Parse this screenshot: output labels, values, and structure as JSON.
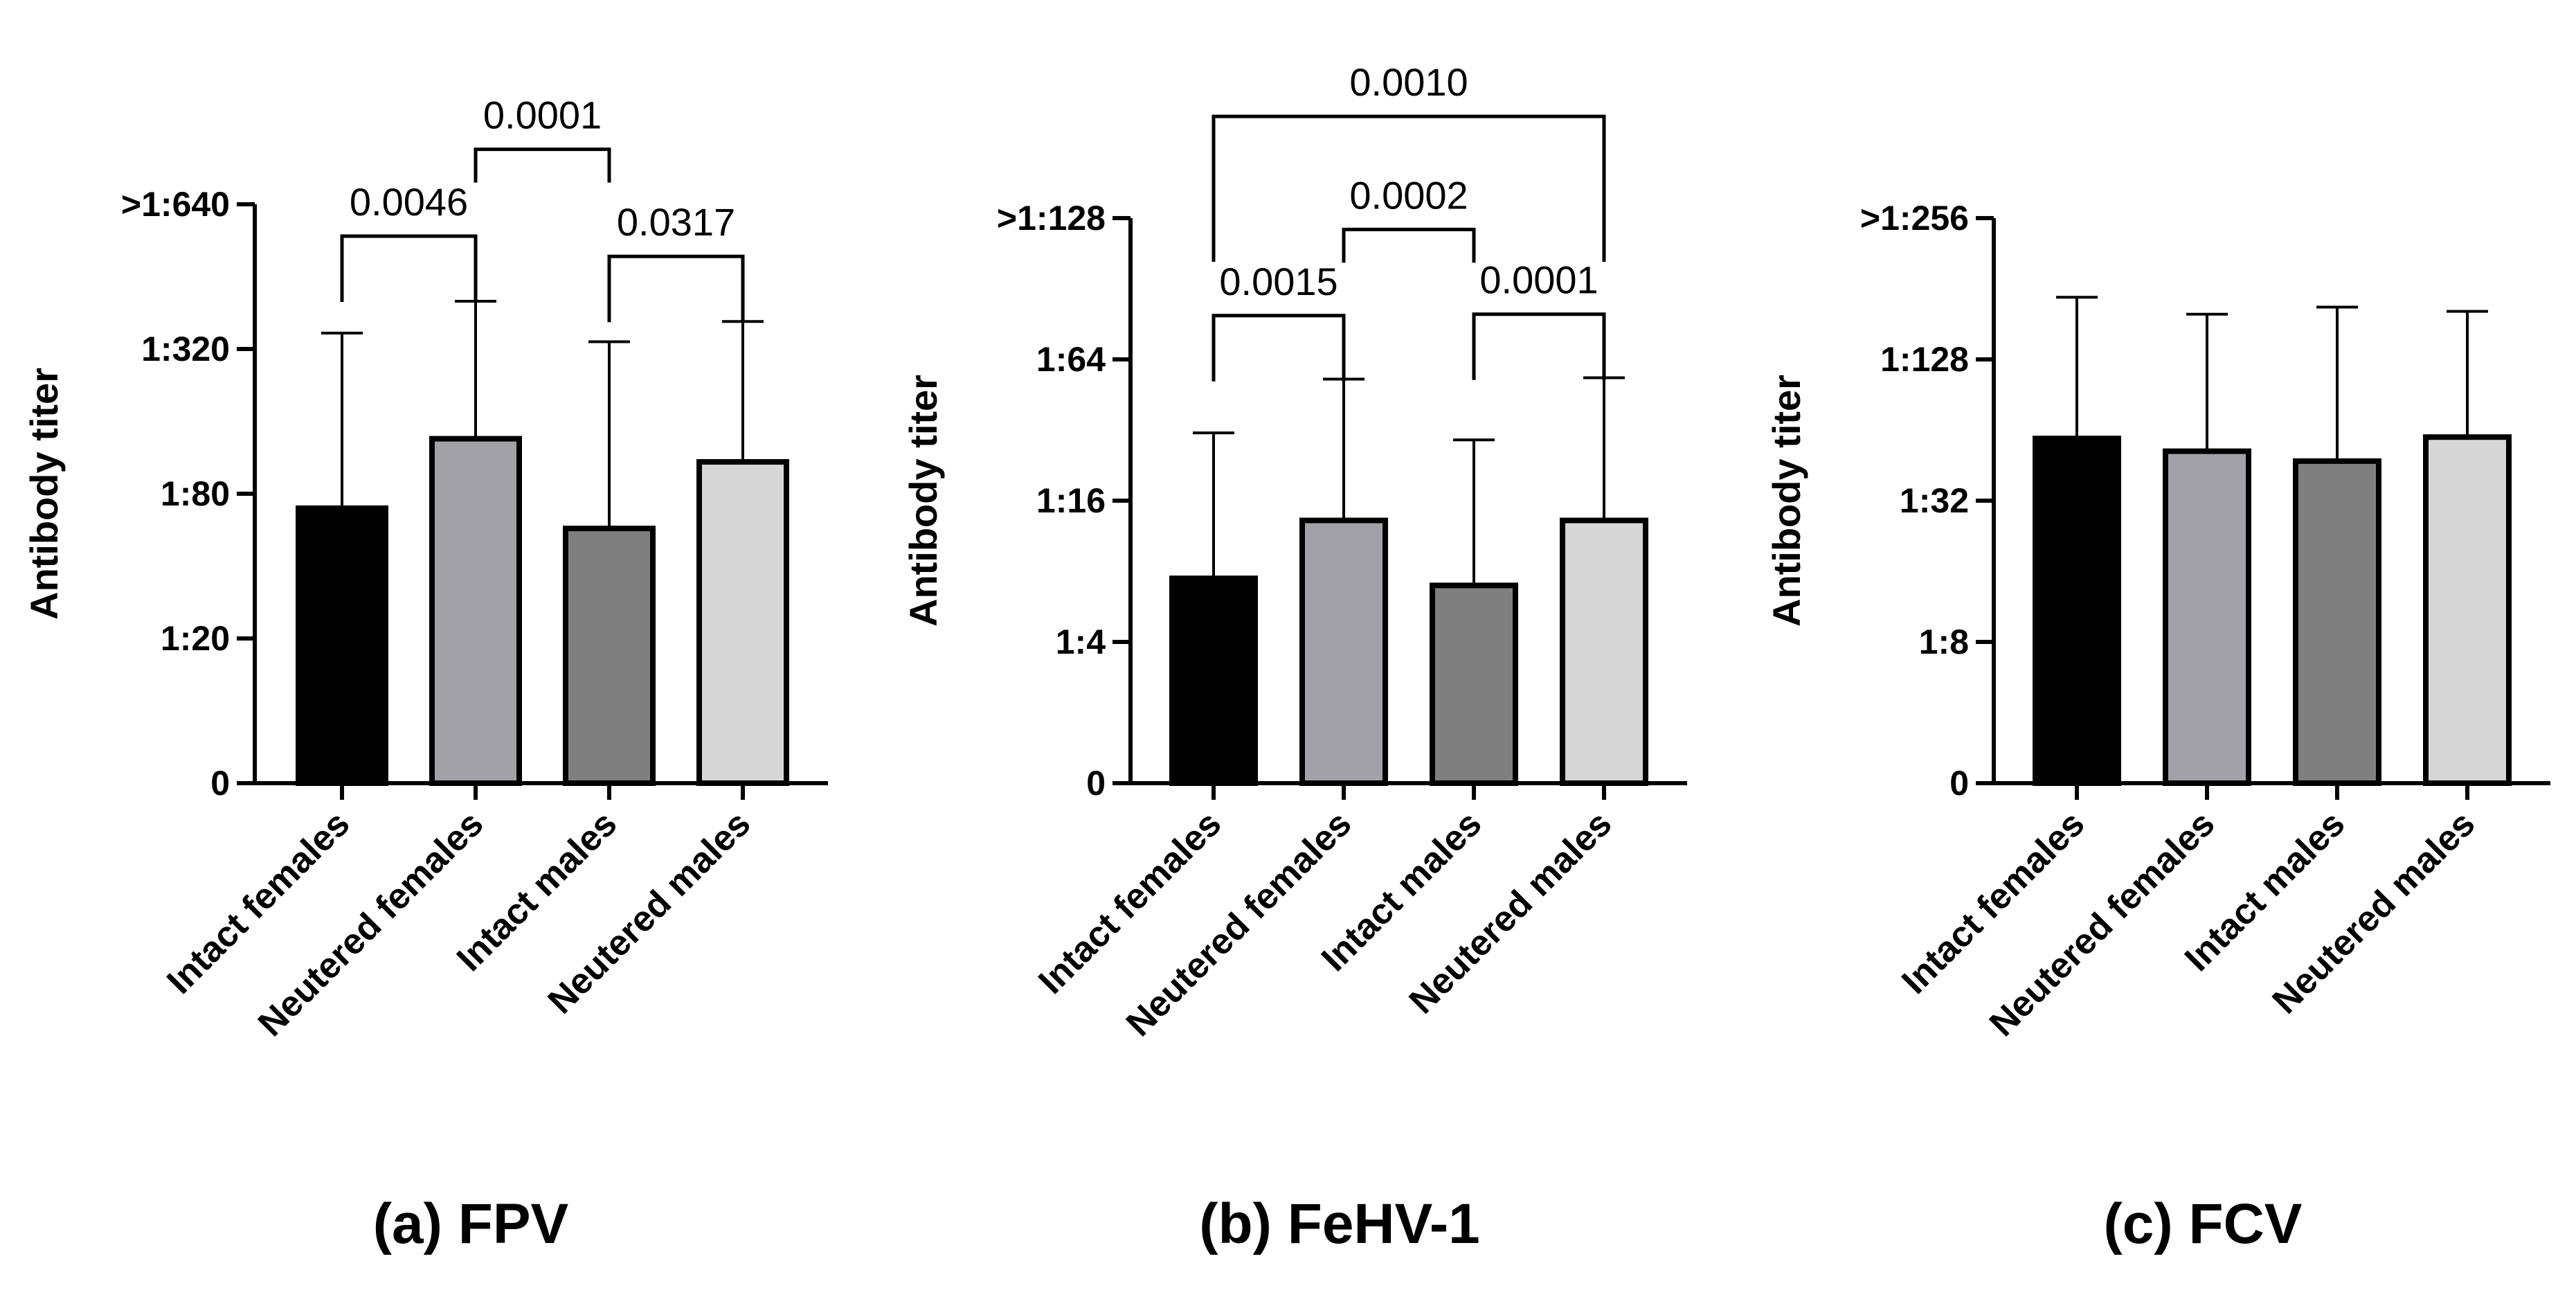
{
  "chart_data": [
    {
      "type": "bar",
      "caption": "(a) FPV",
      "ylabel": "Antibody titer",
      "ytick_labels": [
        "0",
        "1:20",
        "1:80",
        "1:320",
        ">1:640"
      ],
      "categories": [
        "Intact females",
        "Neutered females",
        "Intact males",
        "Neutered males"
      ],
      "values": [
        1.9,
        2.38,
        1.76,
        2.22
      ],
      "error_upper": [
        3.11,
        3.33,
        3.05,
        3.19
      ],
      "ylim": [
        0,
        4
      ],
      "colors": [
        "#000000",
        "#a2a2a6",
        "#7f7f7f",
        "#d6d6d6"
      ],
      "comparisons": [
        {
          "from": 0,
          "to": 1,
          "label": "0.0046"
        },
        {
          "from": 2,
          "to": 3,
          "label": "0.0317"
        },
        {
          "from": 1,
          "to": 2,
          "label": "0.0001"
        }
      ]
    },
    {
      "type": "bar",
      "caption": "(b) FeHV-1",
      "ylabel": "Antibody titer",
      "ytick_labels": [
        "0",
        "1:4",
        "1:16",
        "1:64",
        ">1:128"
      ],
      "categories": [
        "Intact females",
        "Neutered females",
        "Intact males",
        "Neutered males"
      ],
      "values": [
        1.45,
        1.86,
        1.4,
        1.86
      ],
      "error_upper": [
        2.48,
        2.86,
        2.43,
        2.87
      ],
      "ylim": [
        0,
        4
      ],
      "colors": [
        "#000000",
        "#a2a2a6",
        "#7f7f7f",
        "#d6d6d6"
      ],
      "comparisons": [
        {
          "from": 0,
          "to": 1,
          "label": "0.0015"
        },
        {
          "from": 2,
          "to": 3,
          "label": "0.0001"
        },
        {
          "from": 1,
          "to": 2,
          "label": "0.0002"
        },
        {
          "from": 0,
          "to": 3,
          "label": "0.0010"
        }
      ]
    },
    {
      "type": "bar",
      "caption": "(c) FCV",
      "ylabel": "Antibody titer",
      "ytick_labels": [
        "0",
        "1:8",
        "1:32",
        "1:128",
        ">1:256"
      ],
      "categories": [
        "Intact females",
        "Neutered females",
        "Intact males",
        "Neutered males"
      ],
      "values": [
        2.44,
        2.35,
        2.28,
        2.45
      ],
      "error_upper": [
        3.44,
        3.32,
        3.37,
        3.34
      ],
      "ylim": [
        0,
        4
      ],
      "colors": [
        "#000000",
        "#a2a2a6",
        "#7f7f7f",
        "#d6d6d6"
      ],
      "comparisons": []
    }
  ]
}
